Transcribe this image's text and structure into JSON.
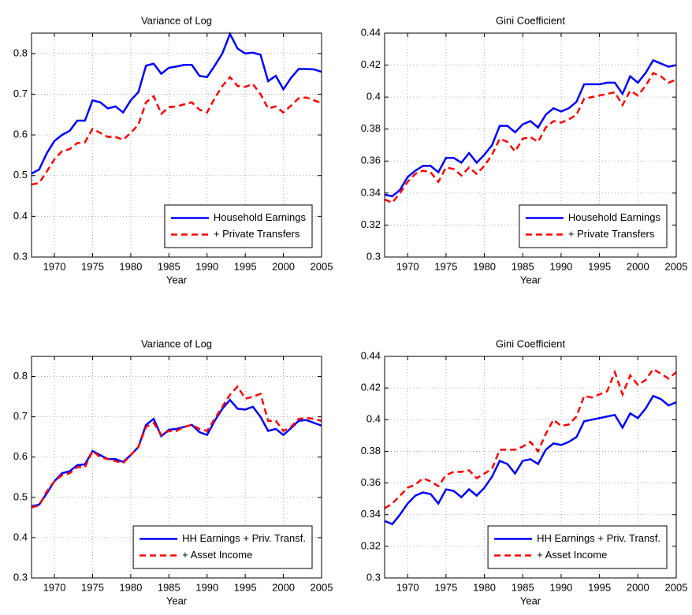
{
  "chart_data": [
    {
      "type": "line",
      "title": "Variance of Log",
      "xlabel": "Year",
      "x": [
        1967,
        1968,
        1969,
        1970,
        1971,
        1972,
        1973,
        1974,
        1975,
        1976,
        1977,
        1978,
        1979,
        1980,
        1981,
        1982,
        1983,
        1984,
        1985,
        1986,
        1987,
        1988,
        1989,
        1990,
        1991,
        1992,
        1993,
        1994,
        1995,
        1996,
        1997,
        1998,
        1999,
        2000,
        2001,
        2002,
        2003,
        2004,
        2005
      ],
      "xlim": [
        1967,
        2005
      ],
      "xticks": [
        1970,
        1975,
        1980,
        1985,
        1990,
        1995,
        2000,
        2005
      ],
      "ylim": [
        0.3,
        0.85
      ],
      "yticks": [
        0.3,
        0.4,
        0.5,
        0.6,
        0.7,
        0.8
      ],
      "grid": true,
      "legend": "lower right",
      "series": [
        {
          "name": "Household Earnings",
          "color": "#0000ff",
          "linestyle": "solid",
          "values": [
            0.505,
            0.515,
            0.555,
            0.585,
            0.6,
            0.61,
            0.635,
            0.635,
            0.685,
            0.68,
            0.665,
            0.67,
            0.655,
            0.685,
            0.705,
            0.77,
            0.775,
            0.75,
            0.765,
            0.768,
            0.772,
            0.772,
            0.745,
            0.742,
            0.77,
            0.8,
            0.848,
            0.812,
            0.8,
            0.802,
            0.797,
            0.732,
            0.745,
            0.712,
            0.74,
            0.762,
            0.762,
            0.761,
            0.755
          ]
        },
        {
          "name": "+ Private Transfers",
          "color": "#ff0000",
          "linestyle": "dashed",
          "values": [
            0.478,
            0.482,
            0.51,
            0.54,
            0.56,
            0.565,
            0.58,
            0.582,
            0.615,
            0.605,
            0.595,
            0.595,
            0.588,
            0.605,
            0.625,
            0.68,
            0.695,
            0.652,
            0.668,
            0.67,
            0.675,
            0.68,
            0.662,
            0.655,
            0.69,
            0.72,
            0.742,
            0.72,
            0.718,
            0.725,
            0.7,
            0.665,
            0.67,
            0.655,
            0.672,
            0.69,
            0.692,
            0.685,
            0.678
          ]
        }
      ]
    },
    {
      "type": "line",
      "title": "Gini Coefficient",
      "xlabel": "Year",
      "x": [
        1967,
        1968,
        1969,
        1970,
        1971,
        1972,
        1973,
        1974,
        1975,
        1976,
        1977,
        1978,
        1979,
        1980,
        1981,
        1982,
        1983,
        1984,
        1985,
        1986,
        1987,
        1988,
        1989,
        1990,
        1991,
        1992,
        1993,
        1994,
        1995,
        1996,
        1997,
        1998,
        1999,
        2000,
        2001,
        2002,
        2003,
        2004,
        2005
      ],
      "xlim": [
        1967,
        2005
      ],
      "xticks": [
        1970,
        1975,
        1980,
        1985,
        1990,
        1995,
        2000,
        2005
      ],
      "ylim": [
        0.3,
        0.44
      ],
      "yticks": [
        0.3,
        0.32,
        0.34,
        0.36,
        0.38,
        0.4,
        0.42,
        0.44
      ],
      "grid": true,
      "legend": "lower right",
      "series": [
        {
          "name": "Household Earnings",
          "color": "#0000ff",
          "linestyle": "solid",
          "values": [
            0.339,
            0.338,
            0.342,
            0.35,
            0.354,
            0.357,
            0.357,
            0.353,
            0.362,
            0.362,
            0.359,
            0.365,
            0.359,
            0.364,
            0.37,
            0.382,
            0.382,
            0.378,
            0.383,
            0.385,
            0.381,
            0.389,
            0.393,
            0.391,
            0.393,
            0.397,
            0.408,
            0.408,
            0.408,
            0.409,
            0.409,
            0.402,
            0.413,
            0.409,
            0.415,
            0.423,
            0.421,
            0.419,
            0.42
          ]
        },
        {
          "name": "+ Private Transfers",
          "color": "#ff0000",
          "linestyle": "dashed",
          "values": [
            0.336,
            0.334,
            0.34,
            0.347,
            0.352,
            0.354,
            0.353,
            0.347,
            0.356,
            0.355,
            0.351,
            0.356,
            0.352,
            0.357,
            0.364,
            0.374,
            0.372,
            0.366,
            0.374,
            0.375,
            0.372,
            0.381,
            0.385,
            0.384,
            0.386,
            0.389,
            0.399,
            0.4,
            0.401,
            0.402,
            0.403,
            0.395,
            0.404,
            0.401,
            0.407,
            0.415,
            0.413,
            0.409,
            0.411
          ]
        }
      ]
    },
    {
      "type": "line",
      "title": "Variance of Log",
      "xlabel": "Year",
      "x": [
        1967,
        1968,
        1969,
        1970,
        1971,
        1972,
        1973,
        1974,
        1975,
        1976,
        1977,
        1978,
        1979,
        1980,
        1981,
        1982,
        1983,
        1984,
        1985,
        1986,
        1987,
        1988,
        1989,
        1990,
        1991,
        1992,
        1993,
        1994,
        1995,
        1996,
        1997,
        1998,
        1999,
        2000,
        2001,
        2002,
        2003,
        2004,
        2005
      ],
      "xlim": [
        1967,
        2005
      ],
      "xticks": [
        1970,
        1975,
        1980,
        1985,
        1990,
        1995,
        2000,
        2005
      ],
      "ylim": [
        0.3,
        0.85
      ],
      "yticks": [
        0.3,
        0.4,
        0.5,
        0.6,
        0.7,
        0.8
      ],
      "grid": true,
      "legend": "lower right",
      "series": [
        {
          "name": "HH Earnings + Priv. Transf.",
          "color": "#0000ff",
          "linestyle": "solid",
          "values": [
            0.478,
            0.482,
            0.51,
            0.54,
            0.56,
            0.565,
            0.58,
            0.582,
            0.615,
            0.605,
            0.595,
            0.595,
            0.588,
            0.605,
            0.625,
            0.68,
            0.695,
            0.652,
            0.668,
            0.67,
            0.675,
            0.68,
            0.662,
            0.655,
            0.69,
            0.72,
            0.742,
            0.72,
            0.718,
            0.725,
            0.7,
            0.665,
            0.67,
            0.655,
            0.672,
            0.69,
            0.692,
            0.685,
            0.678
          ]
        },
        {
          "name": "+ Asset Income",
          "color": "#ff0000",
          "linestyle": "dashed",
          "values": [
            0.475,
            0.48,
            0.515,
            0.54,
            0.555,
            0.56,
            0.575,
            0.575,
            0.615,
            0.6,
            0.595,
            0.59,
            0.585,
            0.605,
            0.625,
            0.675,
            0.685,
            0.655,
            0.665,
            0.665,
            0.675,
            0.68,
            0.67,
            0.665,
            0.695,
            0.725,
            0.755,
            0.775,
            0.745,
            0.75,
            0.757,
            0.69,
            0.69,
            0.665,
            0.675,
            0.695,
            0.697,
            0.695,
            0.69
          ]
        }
      ]
    },
    {
      "type": "line",
      "title": "Gini Coefficient",
      "xlabel": "Year",
      "x": [
        1967,
        1968,
        1969,
        1970,
        1971,
        1972,
        1973,
        1974,
        1975,
        1976,
        1977,
        1978,
        1979,
        1980,
        1981,
        1982,
        1983,
        1984,
        1985,
        1986,
        1987,
        1988,
        1989,
        1990,
        1991,
        1992,
        1993,
        1994,
        1995,
        1996,
        1997,
        1998,
        1999,
        2000,
        2001,
        2002,
        2003,
        2004,
        2005
      ],
      "xlim": [
        1967,
        2005
      ],
      "xticks": [
        1970,
        1975,
        1980,
        1985,
        1990,
        1995,
        2000,
        2005
      ],
      "ylim": [
        0.3,
        0.44
      ],
      "yticks": [
        0.3,
        0.32,
        0.34,
        0.36,
        0.38,
        0.4,
        0.42,
        0.44
      ],
      "grid": true,
      "legend": "lower right",
      "series": [
        {
          "name": "HH Earnings + Priv. Transf.",
          "color": "#0000ff",
          "linestyle": "solid",
          "values": [
            0.336,
            0.334,
            0.34,
            0.347,
            0.352,
            0.354,
            0.353,
            0.347,
            0.356,
            0.355,
            0.351,
            0.356,
            0.352,
            0.357,
            0.364,
            0.374,
            0.372,
            0.366,
            0.374,
            0.375,
            0.372,
            0.381,
            0.385,
            0.384,
            0.386,
            0.389,
            0.399,
            0.4,
            0.401,
            0.402,
            0.403,
            0.395,
            0.404,
            0.401,
            0.407,
            0.415,
            0.413,
            0.409,
            0.411
          ]
        },
        {
          "name": "+ Asset Income",
          "color": "#ff0000",
          "linestyle": "dashed",
          "values": [
            0.344,
            0.347,
            0.352,
            0.357,
            0.359,
            0.363,
            0.361,
            0.358,
            0.365,
            0.367,
            0.367,
            0.368,
            0.363,
            0.366,
            0.369,
            0.381,
            0.381,
            0.381,
            0.383,
            0.386,
            0.38,
            0.391,
            0.4,
            0.396,
            0.397,
            0.402,
            0.415,
            0.414,
            0.416,
            0.418,
            0.43,
            0.416,
            0.428,
            0.422,
            0.425,
            0.432,
            0.429,
            0.426,
            0.43
          ]
        }
      ]
    }
  ]
}
